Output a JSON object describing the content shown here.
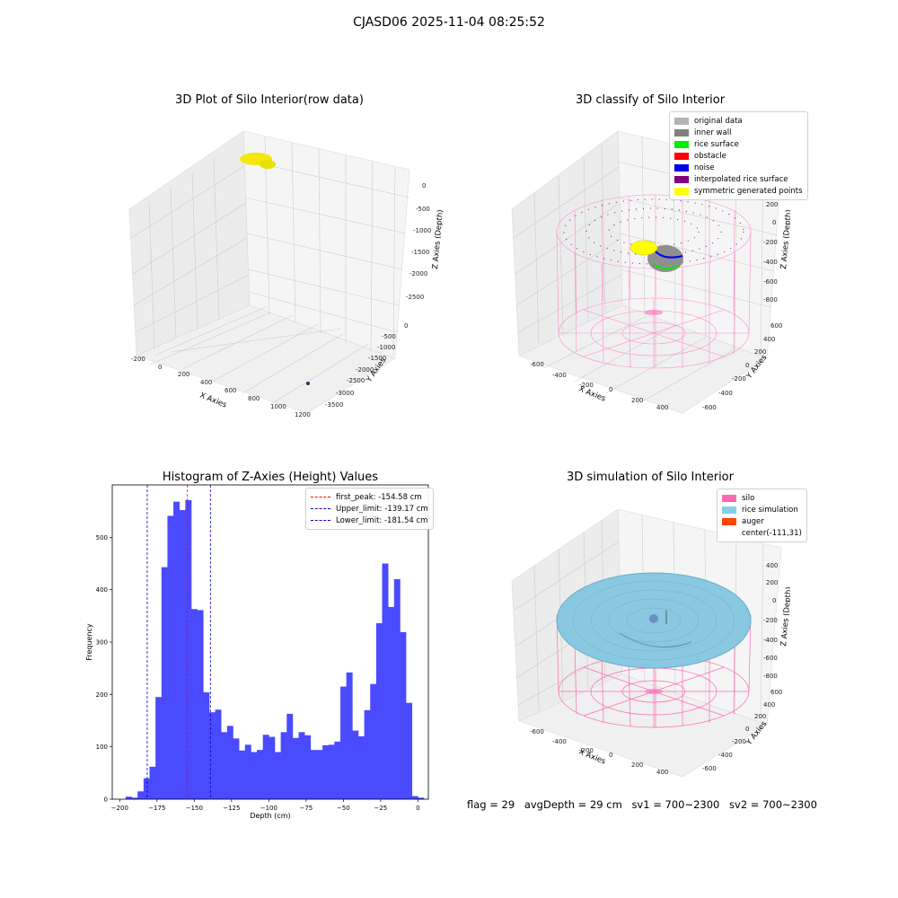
{
  "suptitle": "CJASD06 2025-11-04 08:25:52",
  "panels": {
    "raw": {
      "title": "3D Plot of Silo Interior(row data)",
      "xlabel": "X Axies",
      "ylabel": "Y Axies",
      "zlabel": "Z Axies (Depth)",
      "xticks": [
        "-200",
        "0",
        "200",
        "400",
        "600",
        "800",
        "1000",
        "1200"
      ],
      "yticks": [
        "0",
        "-500",
        "-1000",
        "-1500",
        "-2000",
        "-2500",
        "-3000",
        "-3500"
      ],
      "zticks": [
        "0",
        "-500",
        "-1000",
        "-1500",
        "-2000",
        "-2500"
      ]
    },
    "classify": {
      "title": "3D classify of Silo Interior",
      "xlabel": "X Axies",
      "ylabel": "Y Axies",
      "zlabel": "Z Axies (Depth)",
      "xticks": [
        "-600",
        "-400",
        "-200",
        "0",
        "200",
        "400"
      ],
      "yticks": [
        "600",
        "400",
        "200",
        "0",
        "-200",
        "-400",
        "-600"
      ],
      "zticks": [
        "400",
        "200",
        "0",
        "-200",
        "-400",
        "-600",
        "-800"
      ],
      "legend": [
        {
          "label": "original data",
          "color": "#b4b4b4"
        },
        {
          "label": "inner wall",
          "color": "#808080"
        },
        {
          "label": "rice surface",
          "color": "#00ee00"
        },
        {
          "label": "obstacle",
          "color": "#ff0000"
        },
        {
          "label": "noise",
          "color": "#0000ee"
        },
        {
          "label": "interpolated rice surface",
          "color": "#800080"
        },
        {
          "label": "symmetric generated points",
          "color": "#ffff00"
        }
      ]
    },
    "simulation": {
      "title": "3D simulation of Silo Interior",
      "xlabel": "X Axies",
      "ylabel": "Y Axies",
      "zlabel": "Z Axies (Depth)",
      "xticks": [
        "-600",
        "-400",
        "-200",
        "0",
        "200",
        "400"
      ],
      "yticks": [
        "600",
        "400",
        "200",
        "0",
        "-200",
        "-400",
        "-600"
      ],
      "zticks": [
        "400",
        "200",
        "0",
        "-200",
        "-400",
        "-600",
        "-800"
      ],
      "legend": [
        {
          "label": "silo",
          "color": "#ff69b4"
        },
        {
          "label": "rice simulation",
          "color": "#87ceeb"
        },
        {
          "label": "auger",
          "color": "#ff4500"
        },
        {
          "label": "center(-111,31)",
          "color": "#ffffff"
        }
      ]
    }
  },
  "status": {
    "flag": "flag = 29",
    "avg_depth": "avgDepth = 29 cm",
    "sv1": "sv1 = 700~2300",
    "sv2": "sv2 = 700~2300"
  },
  "chart_data": [
    {
      "type": "histogram",
      "title": "Histogram of Z-Axies (Height) Values",
      "xlabel": "Depth (cm)",
      "ylabel": "Frequency",
      "xlim": [
        -205,
        7
      ],
      "ylim": [
        0,
        600
      ],
      "xticks": [
        -200,
        -175,
        -150,
        -125,
        -100,
        -75,
        -50,
        -25,
        0
      ],
      "yticks": [
        0,
        100,
        200,
        300,
        400,
        500
      ],
      "bar_color": "#4a4aff",
      "bin_width": 4,
      "bins": [
        {
          "x0": -196,
          "count": 5
        },
        {
          "x0": -192,
          "count": 3
        },
        {
          "x0": -188,
          "count": 15
        },
        {
          "x0": -184,
          "count": 40
        },
        {
          "x0": -180,
          "count": 62
        },
        {
          "x0": -176,
          "count": 195
        },
        {
          "x0": -172,
          "count": 443
        },
        {
          "x0": -168,
          "count": 541
        },
        {
          "x0": -164,
          "count": 568
        },
        {
          "x0": -160,
          "count": 552
        },
        {
          "x0": -156,
          "count": 571
        },
        {
          "x0": -152,
          "count": 363
        },
        {
          "x0": -148,
          "count": 361
        },
        {
          "x0": -144,
          "count": 204
        },
        {
          "x0": -140,
          "count": 166
        },
        {
          "x0": -136,
          "count": 171
        },
        {
          "x0": -132,
          "count": 128
        },
        {
          "x0": -128,
          "count": 140
        },
        {
          "x0": -124,
          "count": 116
        },
        {
          "x0": -120,
          "count": 93
        },
        {
          "x0": -116,
          "count": 104
        },
        {
          "x0": -112,
          "count": 90
        },
        {
          "x0": -108,
          "count": 94
        },
        {
          "x0": -104,
          "count": 123
        },
        {
          "x0": -100,
          "count": 119
        },
        {
          "x0": -96,
          "count": 90
        },
        {
          "x0": -92,
          "count": 128
        },
        {
          "x0": -88,
          "count": 163
        },
        {
          "x0": -84,
          "count": 117
        },
        {
          "x0": -80,
          "count": 128
        },
        {
          "x0": -76,
          "count": 122
        },
        {
          "x0": -72,
          "count": 94
        },
        {
          "x0": -68,
          "count": 94
        },
        {
          "x0": -64,
          "count": 103
        },
        {
          "x0": -60,
          "count": 104
        },
        {
          "x0": -56,
          "count": 110
        },
        {
          "x0": -52,
          "count": 215
        },
        {
          "x0": -48,
          "count": 242
        },
        {
          "x0": -44,
          "count": 131
        },
        {
          "x0": -40,
          "count": 120
        },
        {
          "x0": -36,
          "count": 170
        },
        {
          "x0": -32,
          "count": 220
        },
        {
          "x0": -28,
          "count": 336
        },
        {
          "x0": -24,
          "count": 450
        },
        {
          "x0": -20,
          "count": 367
        },
        {
          "x0": -16,
          "count": 420
        },
        {
          "x0": -12,
          "count": 319
        },
        {
          "x0": -8,
          "count": 184
        },
        {
          "x0": -4,
          "count": 6
        },
        {
          "x0": 0,
          "count": 3
        }
      ],
      "vlines": [
        {
          "label": "first_peak: -154.58 cm",
          "x": -154.58,
          "color": "#ff0000"
        },
        {
          "label": "Upper_limit: -139.17 cm",
          "x": -139.17,
          "color": "#0000cc"
        },
        {
          "label": "Lower_limit: -181.54 cm",
          "x": -181.54,
          "color": "#0000cc"
        }
      ],
      "legend_position": "upper right"
    }
  ]
}
